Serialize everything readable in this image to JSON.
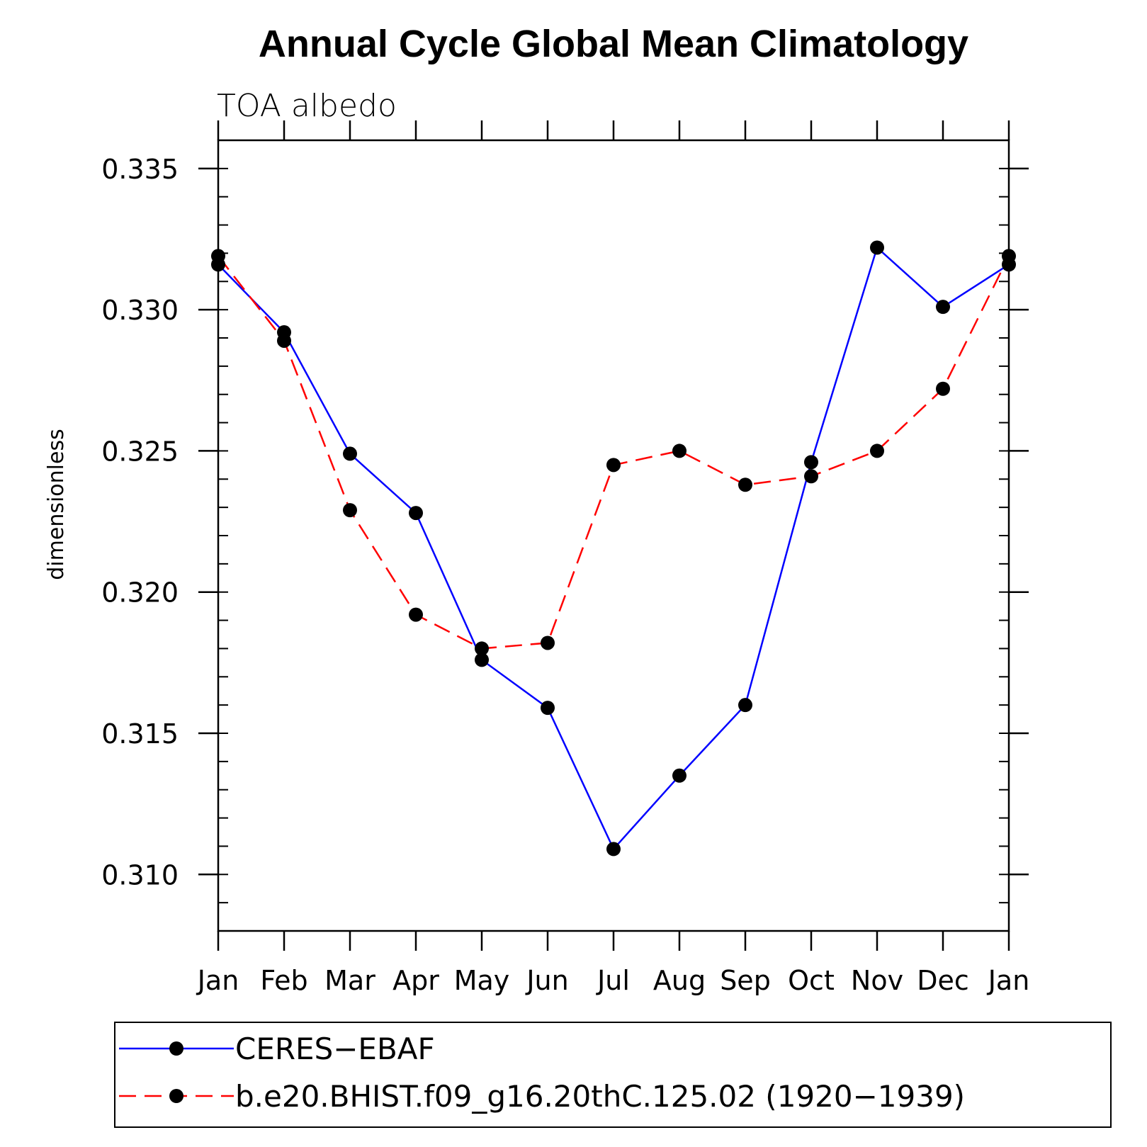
{
  "chart_data": {
    "type": "line",
    "title": "Annual Cycle Global Mean Climatology",
    "subtitle": "TOA albedo",
    "xlabel": "",
    "ylabel": "dimensionless",
    "categories": [
      "Jan",
      "Feb",
      "Mar",
      "Apr",
      "May",
      "Jun",
      "Jul",
      "Aug",
      "Sep",
      "Oct",
      "Nov",
      "Dec",
      "Jan"
    ],
    "ylim": [
      0.308,
      0.336
    ],
    "yticks": [
      "0.310",
      "0.315",
      "0.320",
      "0.325",
      "0.330",
      "0.335"
    ],
    "ytick_values": [
      0.31,
      0.315,
      0.32,
      0.325,
      0.33,
      0.335
    ],
    "grid": false,
    "legend_position": "bottom",
    "series": [
      {
        "name": "CERES−EBAF",
        "color": "#0000ff",
        "style": "solid",
        "marker": "circle",
        "values": [
          0.3316,
          0.3292,
          0.3249,
          0.3228,
          0.3176,
          0.3159,
          0.3109,
          0.3135,
          0.316,
          0.3246,
          0.3322,
          0.3301,
          0.3316
        ]
      },
      {
        "name": "b.e20.BHIST.f09_g16.20thC.125.02 (1920−1939)",
        "color": "#ff0000",
        "style": "dashed",
        "marker": "circle",
        "values": [
          0.3319,
          0.3289,
          0.3229,
          0.3192,
          0.318,
          0.3182,
          0.3245,
          0.325,
          0.3238,
          0.3241,
          0.325,
          0.3272,
          0.3319
        ]
      }
    ]
  }
}
